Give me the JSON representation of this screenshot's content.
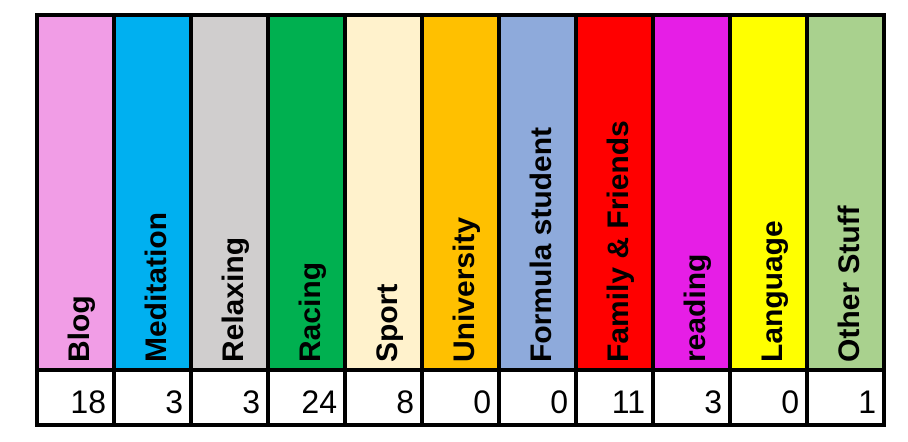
{
  "table": {
    "columns": [
      {
        "label": "Blog",
        "value": 18,
        "color": "#f19de6"
      },
      {
        "label": "Meditation",
        "value": 3,
        "color": "#00b0f0"
      },
      {
        "label": "Relaxing",
        "value": 3,
        "color": "#d0cece"
      },
      {
        "label": "Racing",
        "value": 24,
        "color": "#00b050"
      },
      {
        "label": "Sport",
        "value": 8,
        "color": "#fff2cc"
      },
      {
        "label": "University",
        "value": 0,
        "color": "#ffc000"
      },
      {
        "label": "Formula student",
        "value": 0,
        "color": "#8eaadb"
      },
      {
        "label": "Family & Friends",
        "value": 11,
        "color": "#ff0000"
      },
      {
        "label": "reading",
        "value": 3,
        "color": "#e61ee6"
      },
      {
        "label": "Language",
        "value": 0,
        "color": "#ffff00"
      },
      {
        "label": "Other Stuff",
        "value": 1,
        "color": "#a9d18e"
      }
    ]
  }
}
